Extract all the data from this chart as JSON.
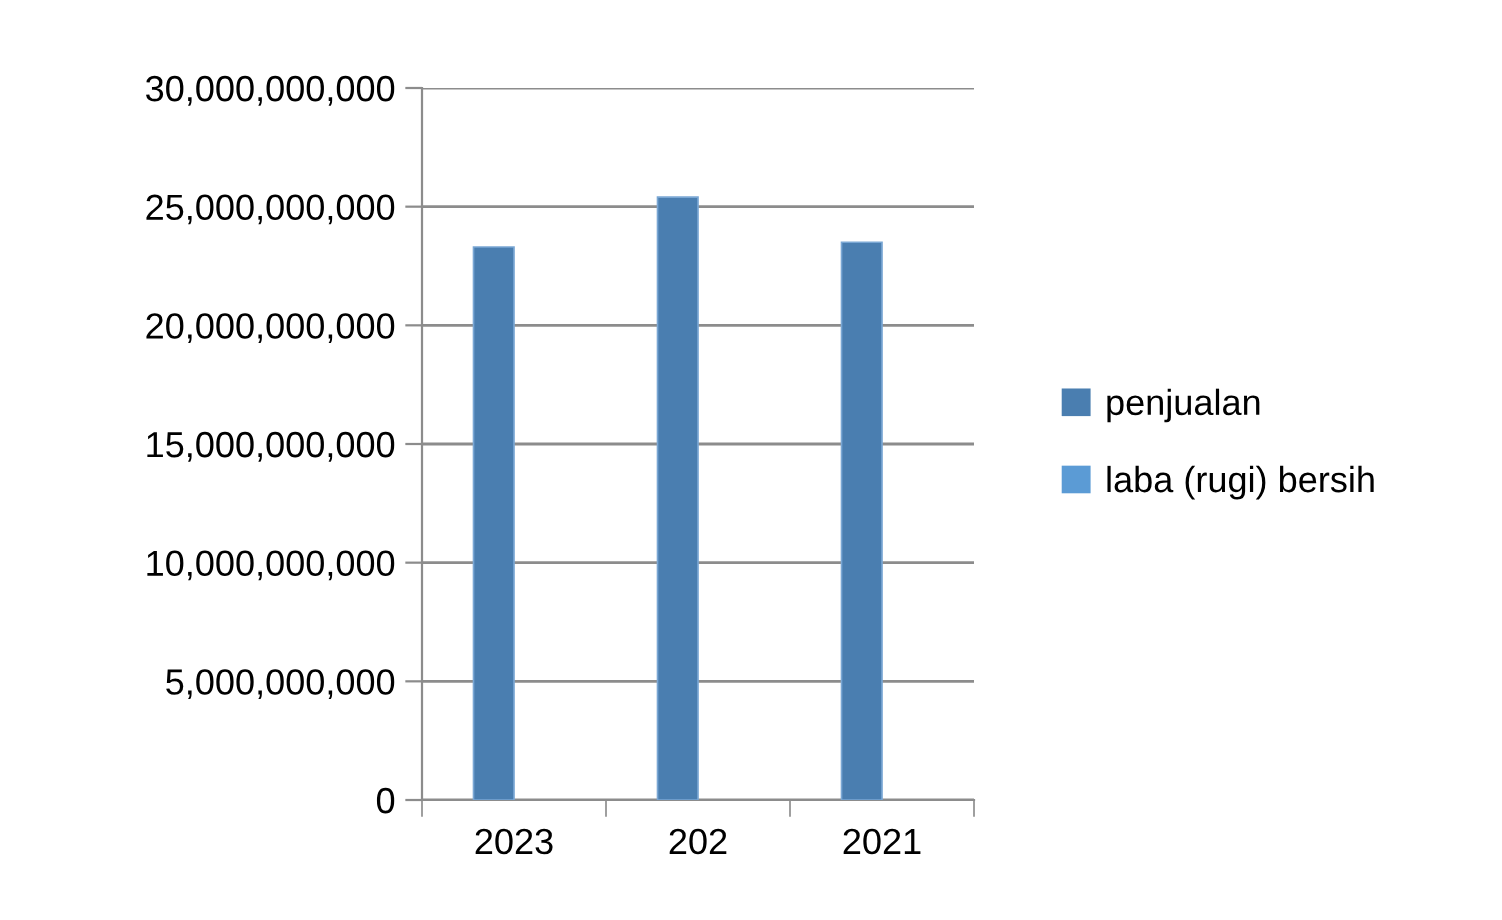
{
  "chart_data": {
    "type": "bar",
    "categories": [
      "2023",
      "202",
      "2021"
    ],
    "series": [
      {
        "name": "penjualan",
        "color": "#4a7eb0",
        "values": [
          23300000000,
          25400000000,
          23500000000
        ]
      },
      {
        "name": "laba (rugi) bersih",
        "color": "#5b9bd5",
        "values": [
          null,
          null,
          null
        ]
      }
    ],
    "ylim": [
      0,
      30000000000
    ],
    "yticks": [
      0,
      {
        "value": 5000000000,
        "label": "5,000,000,000"
      },
      {
        "value": 10000000000,
        "label": "10,000,000,000"
      },
      {
        "value": 15000000000,
        "label": "15,000,000,000"
      },
      {
        "value": 20000000000,
        "label": "20,000,000,000"
      },
      {
        "value": 25000000000,
        "label": "25,000,000,000"
      },
      {
        "value": 30000000000,
        "label": "30,000,000,000"
      }
    ],
    "grid": "y",
    "legend": "right"
  }
}
